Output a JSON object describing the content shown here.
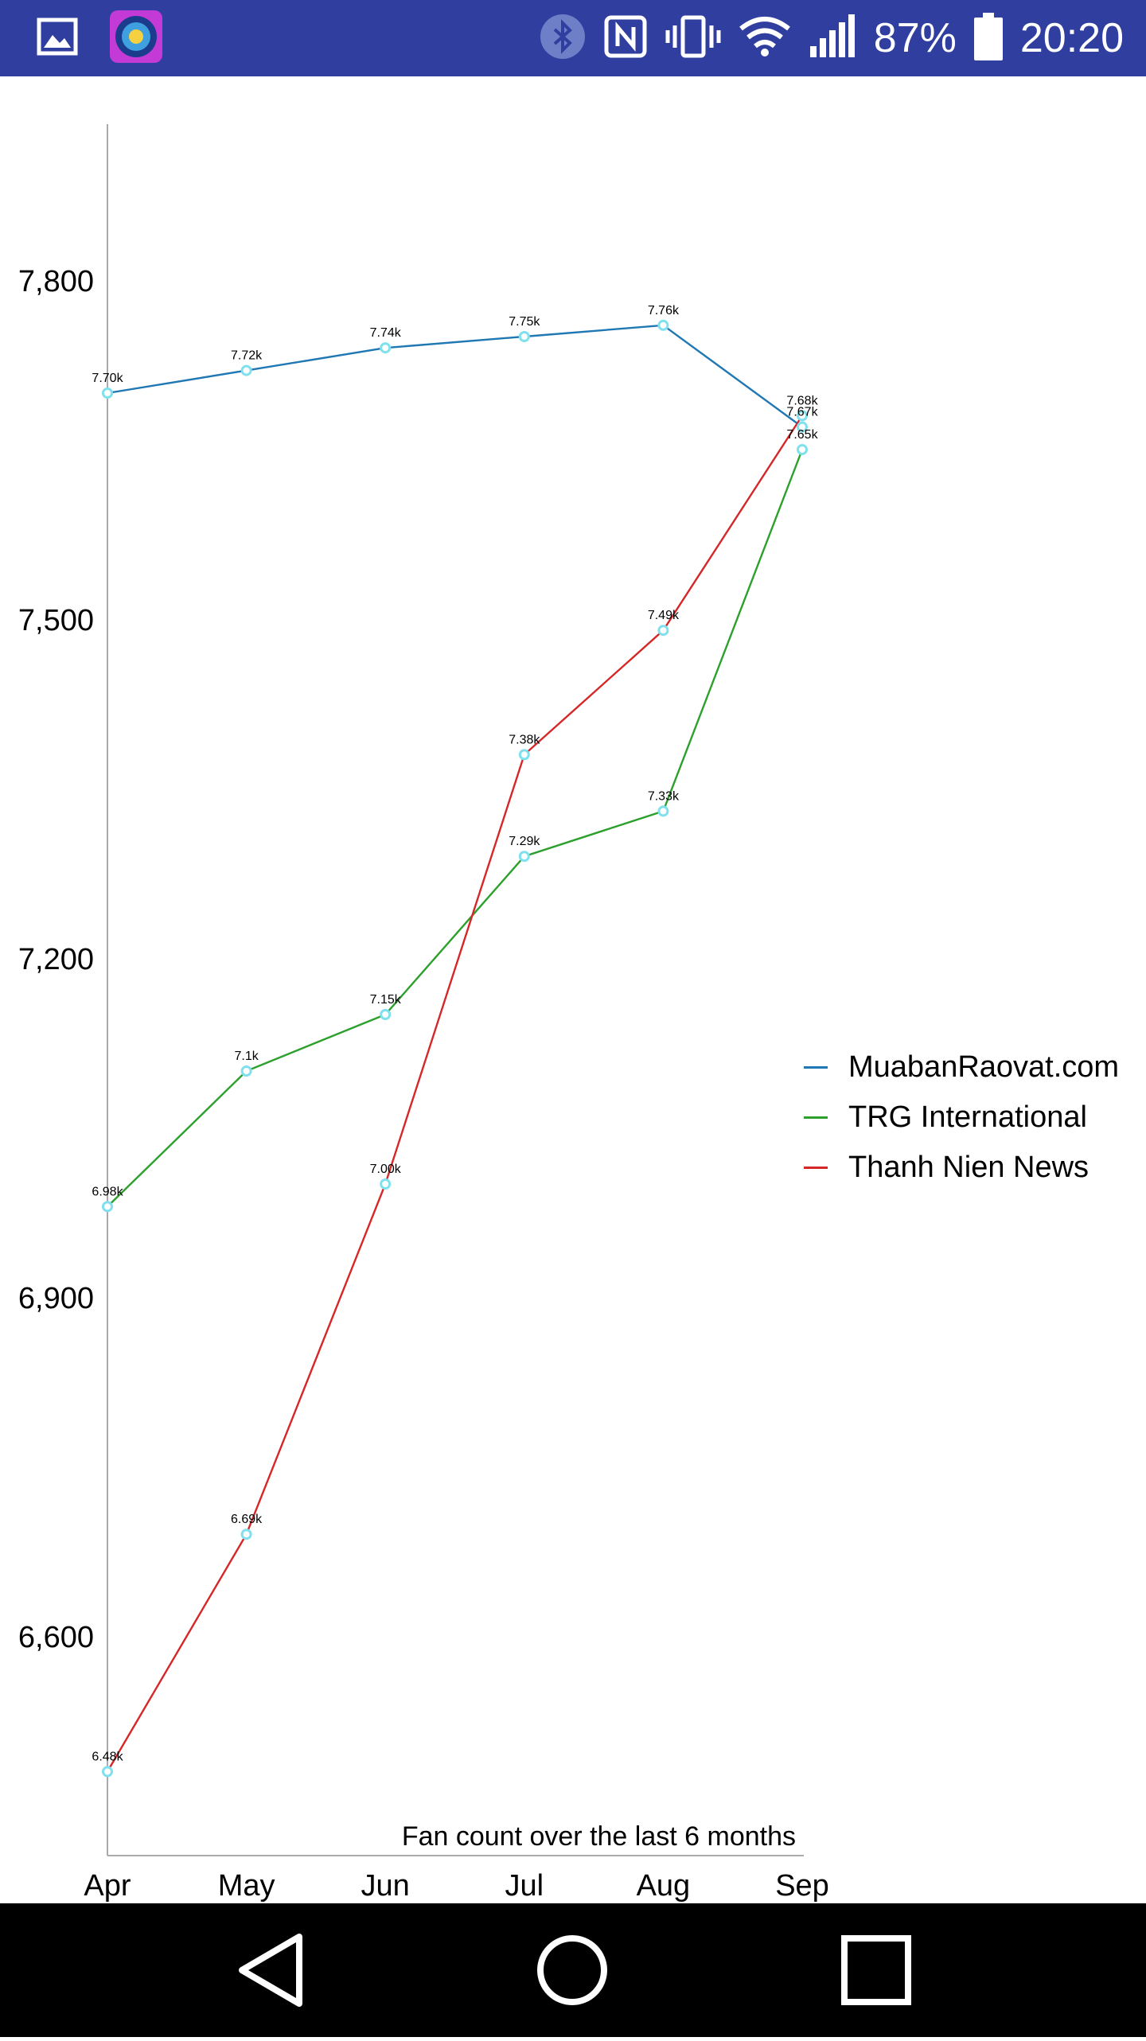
{
  "status_bar": {
    "battery_percent": "87%",
    "time": "20:20",
    "icons": [
      "gallery-icon",
      "app-game-icon",
      "bluetooth-icon",
      "nfc-icon",
      "vibrate-icon",
      "wifi-icon",
      "signal-icon",
      "battery-icon"
    ],
    "background_color": "#303f9f"
  },
  "chart_data": {
    "type": "line",
    "title": "Fan count over the last 6 months",
    "categories": [
      "Apr",
      "May",
      "Jun",
      "Jul",
      "Aug",
      "Sep"
    ],
    "y_ticks": [
      "7,800",
      "7,500",
      "7,200",
      "6,900",
      "6,600"
    ],
    "ylim": [
      6420,
      7890
    ],
    "grid": false,
    "legend_position": "right",
    "series": [
      {
        "name": "MuabanRaovat.com",
        "color": "#1f77b4",
        "values": [
          7700,
          7720,
          7740,
          7750,
          7760,
          7670
        ],
        "labels": [
          "7.70k",
          "7.72k",
          "7.74k",
          "7.75k",
          "7.76k",
          "7.67k"
        ]
      },
      {
        "name": "TRG International",
        "color": "#2ca02c",
        "values": [
          6980,
          7100,
          7150,
          7290,
          7330,
          7650
        ],
        "labels": [
          "6.98k",
          "7.1k",
          "7.15k",
          "7.29k",
          "7.33k",
          "7.65k"
        ]
      },
      {
        "name": "Thanh Nien News",
        "color": "#d62728",
        "values": [
          6480,
          6690,
          7000,
          7380,
          7490,
          7680
        ],
        "labels": [
          "6.48k",
          "6.69k",
          "7.00k",
          "7.38k",
          "7.49k",
          "7.68k"
        ]
      }
    ],
    "marker_color": "#7fe0ee"
  },
  "nav_bar": {
    "buttons": [
      "back-button",
      "home-button",
      "recents-button"
    ]
  }
}
